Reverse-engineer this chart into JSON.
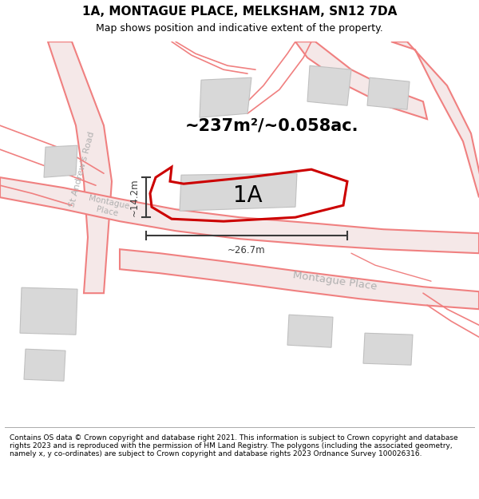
{
  "title": "1A, MONTAGUE PLACE, MELKSHAM, SN12 7DA",
  "subtitle": "Map shows position and indicative extent of the property.",
  "footer_text": "Contains OS data © Crown copyright and database right 2021. This information is subject to Crown copyright and database rights 2023 and is reproduced with the permission of HM Land Registry. The polygons (including the associated geometry, namely x, y co-ordinates) are subject to Crown copyright and database rights 2023 Ordnance Survey 100026316.",
  "area_text": "~237m²/~0.058ac.",
  "label_1A": "1A",
  "dim_height": "~14.2m",
  "dim_width": "~26.7m",
  "map_bg": "#ffffff",
  "road_line_color": "#f08080",
  "road_fill_color": "#f5e8e8",
  "building_color": "#d8d8d8",
  "building_edge": "#c0c0c0",
  "property_color": "#cc0000",
  "dim_color": "#3a3a3a",
  "road_label_color": "#b0b0b0",
  "title_fontsize": 11,
  "subtitle_fontsize": 9,
  "footer_fontsize": 6.5
}
